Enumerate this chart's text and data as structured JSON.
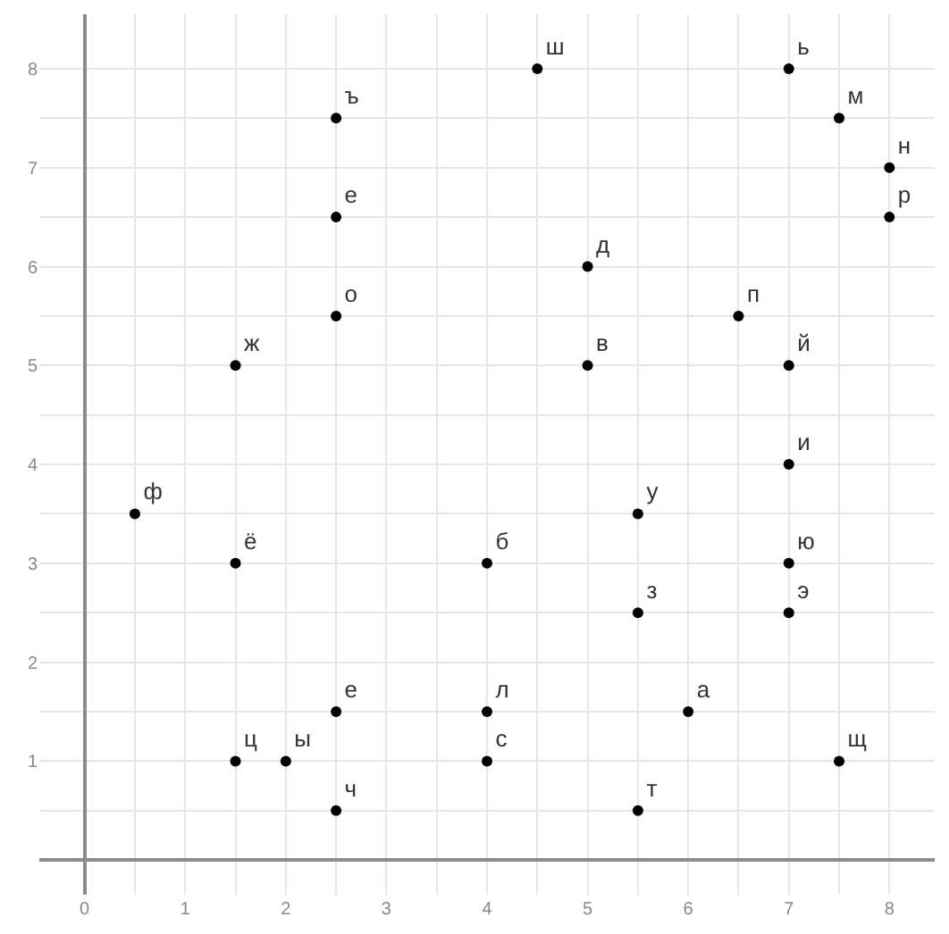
{
  "chart_data": {
    "type": "scatter",
    "x": [
      4.5,
      7,
      2.5,
      7.5,
      8,
      2.5,
      8,
      5,
      2.5,
      6.5,
      1.5,
      5,
      7,
      7,
      0.5,
      5.5,
      1.5,
      4,
      7,
      5.5,
      7,
      2.5,
      4,
      6,
      1.5,
      2,
      4,
      7.5,
      2.5,
      5.5
    ],
    "series": [
      {
        "color": "#000000",
        "values": [
          8,
          8,
          7.5,
          7.5,
          7,
          6.5,
          6.5,
          6,
          5.5,
          5.5,
          5,
          5,
          5,
          4,
          3.5,
          3.5,
          3,
          3,
          3,
          2.5,
          2.5,
          1.5,
          1.5,
          1.5,
          1,
          1,
          1,
          1,
          0.5,
          0.5
        ],
        "value_labels": [
          "ш",
          "ь",
          "ъ",
          "м",
          "н",
          "е",
          "р",
          "д",
          "о",
          "п",
          "ж",
          "в",
          "й",
          "и",
          "ф",
          "у",
          "ё",
          "б",
          "ю",
          "з",
          "э",
          "е",
          "л",
          "а",
          "ц",
          "ы",
          "с",
          "щ",
          "ч",
          "т"
        ]
      }
    ],
    "xlim": [
      -0.45,
      8.45
    ],
    "ylim": [
      -0.35,
      8.55
    ],
    "xticks": [
      0,
      {
        "value": 0.5,
        "label": null
      },
      1,
      {
        "value": 1.5,
        "label": null
      },
      2,
      {
        "value": 2.5,
        "label": null
      },
      3,
      {
        "value": 3.5,
        "label": null
      },
      4,
      {
        "value": 4.5,
        "label": null
      },
      5,
      {
        "value": 5.5,
        "label": null
      },
      6,
      {
        "value": 6.5,
        "label": null
      },
      7,
      {
        "value": 7.5,
        "label": null
      },
      8
    ],
    "yticks": [
      {
        "value": 0.5,
        "label": null
      },
      1,
      {
        "value": 1.5,
        "label": null
      },
      2,
      {
        "value": 2.5,
        "label": null
      },
      3,
      {
        "value": 3.5,
        "label": null
      },
      4,
      {
        "value": 4.5,
        "label": null
      },
      5,
      {
        "value": 5.5,
        "label": null
      },
      6,
      {
        "value": 6.5,
        "label": null
      },
      7,
      {
        "value": 7.5,
        "label": null
      },
      8
    ],
    "grid": true,
    "marker": "circle"
  }
}
